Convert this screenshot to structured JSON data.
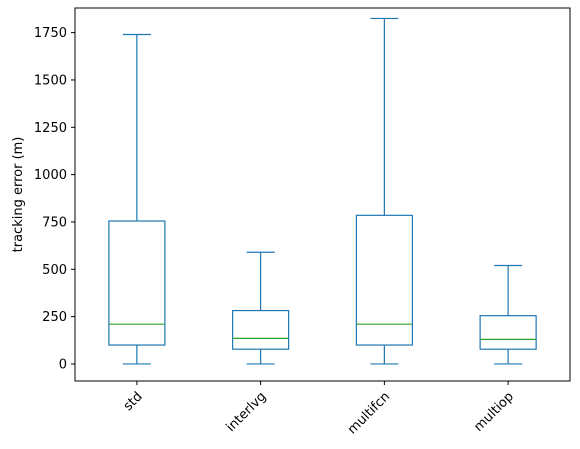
{
  "chart_data": {
    "type": "box",
    "title": "",
    "xlabel": "",
    "ylabel": "tracking error (m)",
    "ylim": [
      -90,
      1880
    ],
    "yticks": [
      0,
      250,
      500,
      750,
      1000,
      1250,
      1500,
      1750
    ],
    "ytick_labels": [
      "0",
      "250",
      "500",
      "750",
      "1000",
      "1250",
      "1500",
      "1750"
    ],
    "grid": false,
    "categories": [
      "std",
      "interlvg",
      "multifcn",
      "multiop"
    ],
    "boxes": [
      {
        "min": 0,
        "q1": 100,
        "median": 210,
        "q3": 755,
        "max": 1740
      },
      {
        "min": 0,
        "q1": 78,
        "median": 135,
        "q3": 282,
        "max": 590
      },
      {
        "min": 0,
        "q1": 100,
        "median": 210,
        "q3": 785,
        "max": 1825
      },
      {
        "min": 0,
        "q1": 78,
        "median": 130,
        "q3": 255,
        "max": 520
      }
    ]
  }
}
